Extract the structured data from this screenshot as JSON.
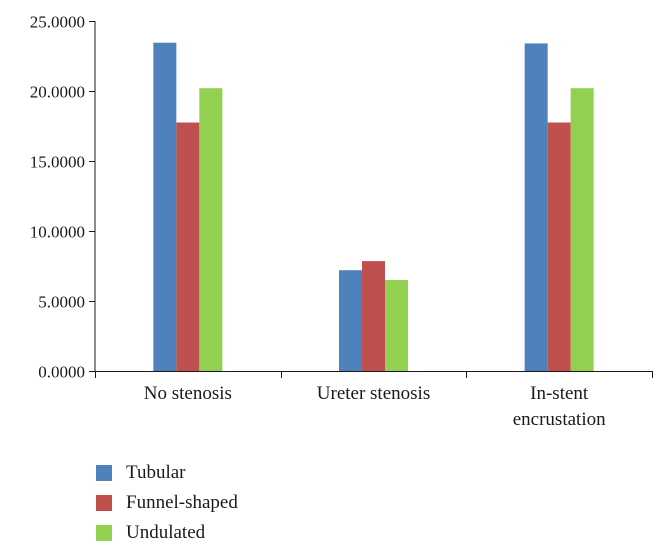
{
  "chart_data": {
    "type": "bar",
    "categories": [
      "No stenosis",
      "Ureter stenosis",
      "In-stent encrustation"
    ],
    "category_lines": [
      [
        "No stenosis"
      ],
      [
        "Ureter stenosis"
      ],
      [
        "In-stent",
        "encrustation"
      ]
    ],
    "series": [
      {
        "name": "Tubular",
        "color": "#4f81bd",
        "values": [
          23.45,
          7.2,
          23.4
        ]
      },
      {
        "name": "Funnel-shaped",
        "color": "#c0504d",
        "values": [
          17.75,
          7.85,
          17.75
        ]
      },
      {
        "name": "Undulated",
        "color": "#92d050",
        "values": [
          20.2,
          6.5,
          20.2
        ]
      }
    ],
    "y_ticks": [
      "0.0000",
      "5.0000",
      "10.0000",
      "15.0000",
      "20.0000",
      "25.0000"
    ],
    "ylim": [
      0,
      25
    ],
    "title": "",
    "xlabel": "",
    "ylabel": "",
    "grid": false,
    "legend_position": "bottom-left"
  }
}
